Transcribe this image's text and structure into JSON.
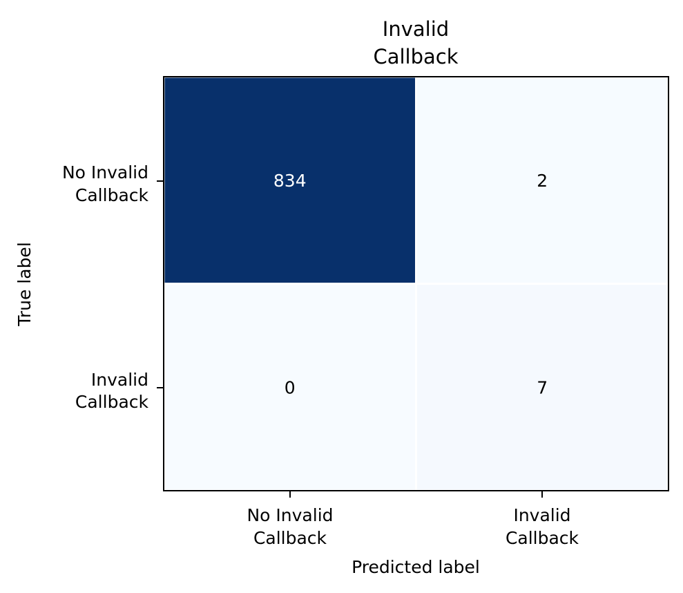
{
  "chart_data": {
    "type": "heatmap",
    "title_lines": [
      "Invalid",
      "Callback"
    ],
    "xlabel": "Predicted label",
    "ylabel": "True label",
    "x_categories": [
      [
        "No Invalid",
        "Callback"
      ],
      [
        "Invalid",
        "Callback"
      ]
    ],
    "y_categories": [
      [
        "No Invalid",
        "Callback"
      ],
      [
        "Invalid",
        "Callback"
      ]
    ],
    "matrix": [
      [
        834,
        2
      ],
      [
        0,
        7
      ]
    ],
    "colormap": "Blues",
    "color_low": "#f7fbff",
    "color_high": "#08306b",
    "text_color_dark_cell": "#ffffff",
    "text_color_light_cell": "#000000",
    "grid": false
  }
}
